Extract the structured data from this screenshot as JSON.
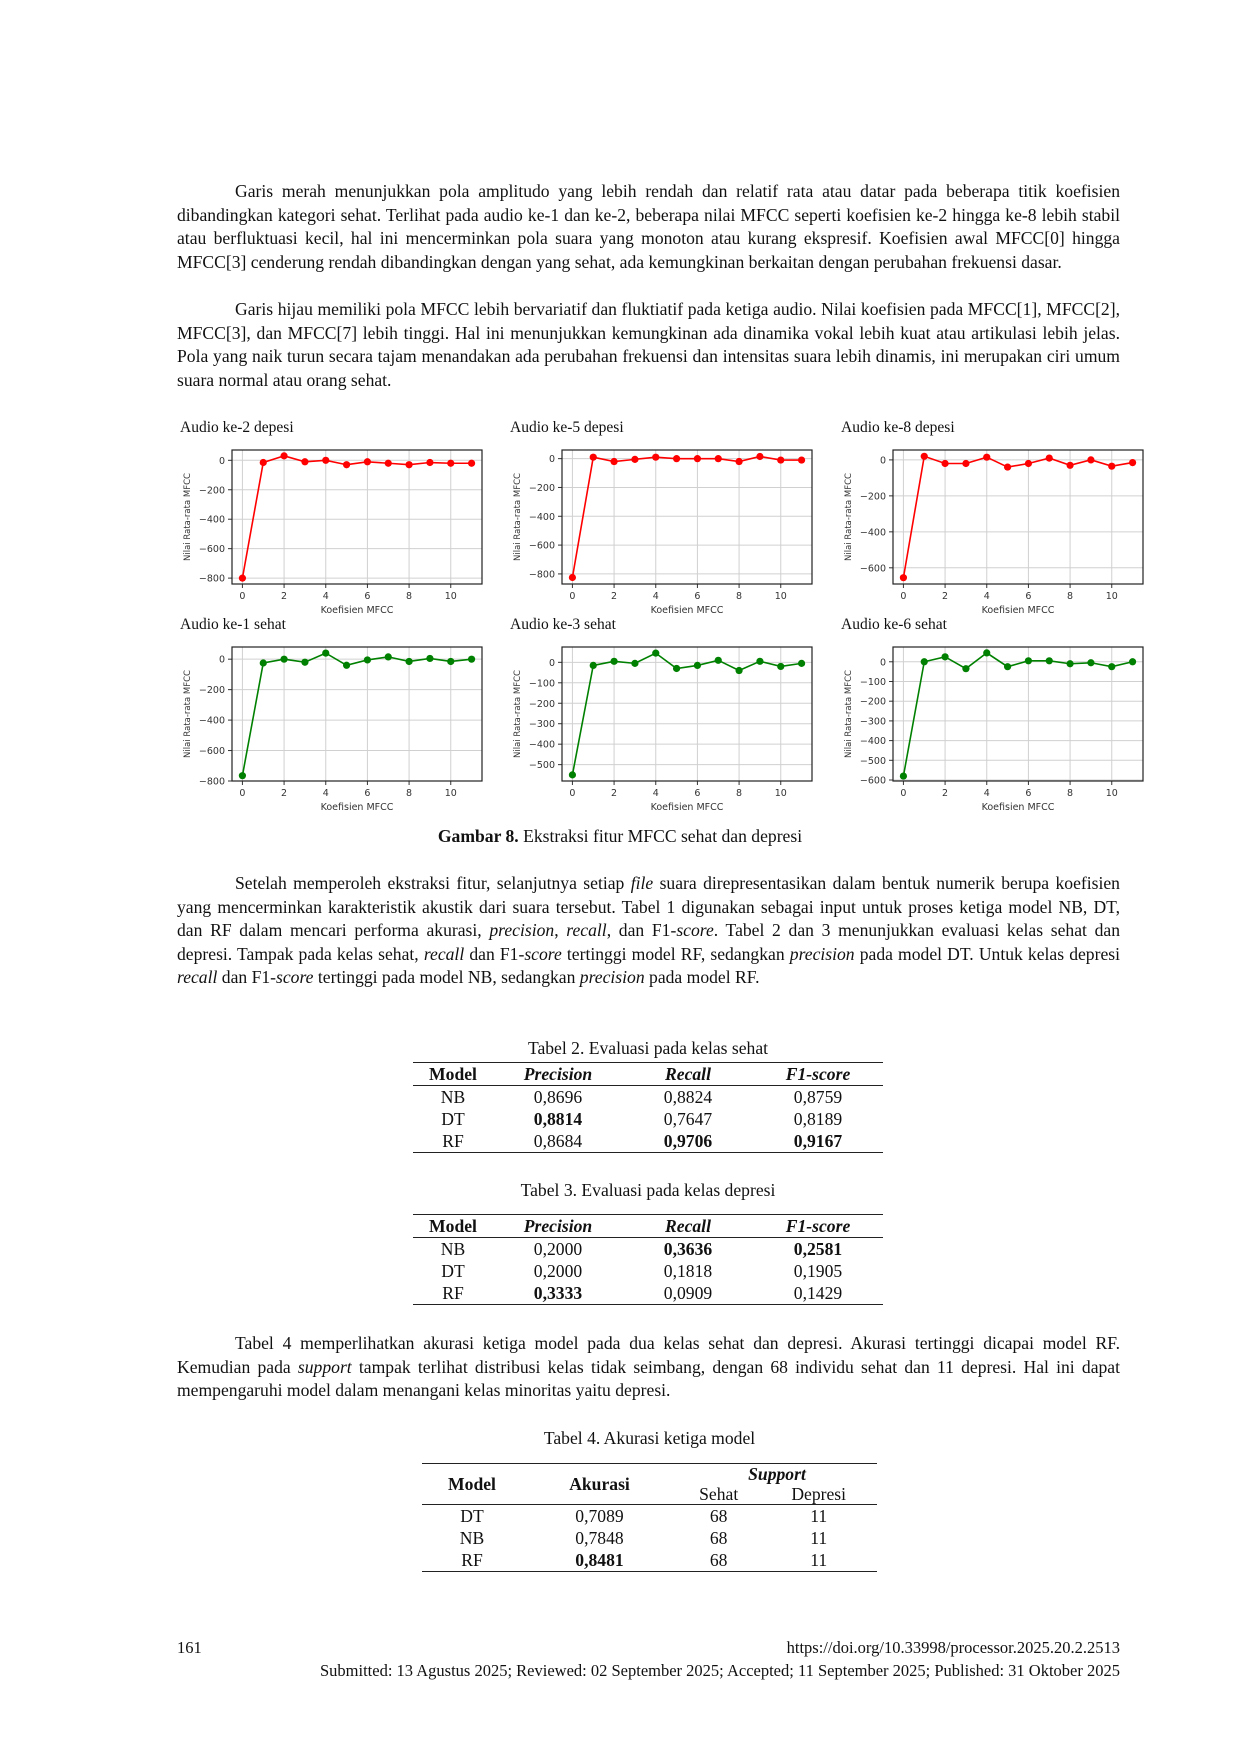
{
  "paragraphs": [
    [
      {
        "t": "Garis merah menunjukkan pola amplitudo yang lebih rendah dan relatif rata atau datar pada beberapa titik koefisien dibandingkan kategori sehat. Terlihat pada audio ke-1 dan ke-2, beberapa nilai MFCC seperti koefisien ke-2 hingga ke-8 lebih stabil atau berfluktuasi kecil, hal ini mencerminkan pola suara yang monoton atau kurang ekspresif. Koefisien awal MFCC[0] hingga MFCC[3] cenderung rendah dibandingkan dengan yang sehat, ada kemungkinan berkaitan dengan perubahan frekuensi dasar."
      }
    ],
    [
      {
        "t": "Garis hijau memiliki pola MFCC lebih bervariatif dan fluktiatif pada ketiga audio. Nilai koefisien pada MFCC[1], MFCC[2], MFCC[3], dan MFCC[7] lebih tinggi. Hal ini menunjukkan kemungkinan ada dinamika vokal lebih kuat atau artikulasi lebih jelas. Pola yang naik turun secara tajam menandakan ada perubahan frekuensi dan intensitas suara lebih dinamis, ini merupakan ciri umum suara normal atau orang sehat."
      }
    ],
    [
      {
        "t": "Setelah memperoleh ekstraksi fitur, selanjutnya setiap "
      },
      {
        "t": "file",
        "i": true
      },
      {
        "t": " suara direpresentasikan dalam bentuk numerik berupa koefisien yang mencerminkan karakteristik akustik dari suara tersebut. Tabel 1 digunakan sebagai input untuk proses ketiga model NB, DT, dan RF dalam mencari performa akurasi, "
      },
      {
        "t": "precision",
        "i": true
      },
      {
        "t": ", "
      },
      {
        "t": "recall",
        "i": true
      },
      {
        "t": ", dan F1-"
      },
      {
        "t": "score",
        "i": true
      },
      {
        "t": ". Tabel 2 dan 3 menunjukkan evaluasi kelas sehat dan depresi. Tampak pada kelas sehat, "
      },
      {
        "t": "recall",
        "i": true
      },
      {
        "t": " dan F1-"
      },
      {
        "t": "score",
        "i": true
      },
      {
        "t": " tertinggi model RF, sedangkan "
      },
      {
        "t": "precision",
        "i": true
      },
      {
        "t": " pada model DT. Untuk kelas depresi "
      },
      {
        "t": "recall",
        "i": true
      },
      {
        "t": " dan F1-"
      },
      {
        "t": "score",
        "i": true
      },
      {
        "t": " tertinggi pada model NB, sedangkan "
      },
      {
        "t": "precision",
        "i": true
      },
      {
        "t": " pada model RF."
      }
    ],
    [
      {
        "t": "Tabel 4 memperlihatkan akurasi ketiga model pada dua kelas sehat dan depresi. Akurasi tertinggi dicapai model RF. Kemudian pada "
      },
      {
        "t": "support",
        "i": true
      },
      {
        "t": " tampak terlihat distribusi kelas tidak seimbang, dengan 68 individu sehat dan 11 depresi. Hal ini dapat mempengaruhi model dalam menangani kelas minoritas yaitu depresi."
      }
    ]
  ],
  "figure_caption": {
    "label": "Gambar 8.",
    "text": " Ekstraksi fitur MFCC sehat dan depresi"
  },
  "chart_data": [
    {
      "type": "line",
      "title": "Audio ke-2 depesi",
      "xlabel": "Koefisien MFCC",
      "ylabel": "Nilai Rata-rata MFCC",
      "color": "#ff0000",
      "x": [
        0,
        1,
        2,
        3,
        4,
        5,
        6,
        7,
        8,
        9,
        10,
        11
      ],
      "values": [
        -800,
        -15,
        30,
        -10,
        0,
        -30,
        -10,
        -20,
        -30,
        -15,
        -20,
        -20
      ],
      "ylim": [
        -840,
        70
      ],
      "yticks": [
        -800,
        -600,
        -400,
        -200,
        0
      ],
      "xticks": [
        0,
        2,
        4,
        6,
        8,
        10
      ],
      "grid": true
    },
    {
      "type": "line",
      "title": "Audio ke-5 depesi",
      "xlabel": "Koefisien MFCC",
      "ylabel": "Nilai Rata-rata MFCC",
      "color": "#ff0000",
      "x": [
        0,
        1,
        2,
        3,
        4,
        5,
        6,
        7,
        8,
        9,
        10,
        11
      ],
      "values": [
        -825,
        10,
        -20,
        -5,
        10,
        0,
        0,
        0,
        -20,
        15,
        -10,
        -10
      ],
      "ylim": [
        -870,
        60
      ],
      "yticks": [
        -800,
        -600,
        -400,
        -200,
        0
      ],
      "xticks": [
        0,
        2,
        4,
        6,
        8,
        10
      ],
      "grid": true
    },
    {
      "type": "line",
      "title": "Audio ke-8 depesi",
      "xlabel": "Koefisien MFCC",
      "ylabel": "Nilai Rata-rata MFCC",
      "color": "#ff0000",
      "x": [
        0,
        1,
        2,
        3,
        4,
        5,
        6,
        7,
        8,
        9,
        10,
        11
      ],
      "values": [
        -655,
        20,
        -20,
        -20,
        15,
        -40,
        -20,
        10,
        -30,
        0,
        -35,
        -15
      ],
      "ylim": [
        -690,
        55
      ],
      "yticks": [
        -600,
        -400,
        -200,
        0
      ],
      "xticks": [
        0,
        2,
        4,
        6,
        8,
        10
      ],
      "grid": true
    },
    {
      "type": "line",
      "title": "Audio ke-1 sehat",
      "xlabel": "Koefisien MFCC",
      "ylabel": "Nilai Rata-rata MFCC",
      "color": "#008000",
      "x": [
        0,
        1,
        2,
        3,
        4,
        5,
        6,
        7,
        8,
        9,
        10,
        11
      ],
      "values": [
        -765,
        -25,
        0,
        -20,
        40,
        -40,
        -5,
        15,
        -15,
        5,
        -15,
        0
      ],
      "ylim": [
        -800,
        80
      ],
      "yticks": [
        -800,
        -600,
        -400,
        -200,
        0
      ],
      "xticks": [
        0,
        2,
        4,
        6,
        8,
        10
      ],
      "grid": true
    },
    {
      "type": "line",
      "title": "Audio ke-3 sehat",
      "xlabel": "Koefisien MFCC",
      "ylabel": "Nilai Rata-rata MFCC",
      "color": "#008000",
      "x": [
        0,
        1,
        2,
        3,
        4,
        5,
        6,
        7,
        8,
        9,
        10,
        11
      ],
      "values": [
        -550,
        -15,
        5,
        -5,
        45,
        -30,
        -15,
        10,
        -40,
        5,
        -20,
        -5
      ],
      "ylim": [
        -580,
        75
      ],
      "yticks": [
        -500,
        -400,
        -300,
        -200,
        -100,
        0
      ],
      "xticks": [
        0,
        2,
        4,
        6,
        8,
        10
      ],
      "grid": true
    },
    {
      "type": "line",
      "title": "Audio ke-6 sehat",
      "xlabel": "Koefisien MFCC",
      "ylabel": "Nilai Rata-rata MFCC",
      "color": "#008000",
      "x": [
        0,
        1,
        2,
        3,
        4,
        5,
        6,
        7,
        8,
        9,
        10,
        11
      ],
      "values": [
        -580,
        0,
        25,
        -35,
        45,
        -25,
        5,
        5,
        -10,
        -5,
        -25,
        0
      ],
      "ylim": [
        -605,
        75
      ],
      "yticks": [
        -600,
        -500,
        -400,
        -300,
        -200,
        -100,
        0
      ],
      "xticks": [
        0,
        2,
        4,
        6,
        8,
        10
      ],
      "grid": true
    }
  ],
  "table2": {
    "caption": "Tabel 2. Evaluasi pada kelas sehat",
    "headers": [
      "Model",
      "Precision",
      "Recall",
      "F1-score"
    ],
    "rows": [
      [
        "NB",
        "0,8696",
        "0,8824",
        "0,8759"
      ],
      [
        "DT",
        "0,8814",
        "0,7647",
        "0,8189"
      ],
      [
        "RF",
        "0,8684",
        "0,9706",
        "0,9167"
      ]
    ],
    "bold": [
      [
        1,
        1
      ],
      [
        2,
        2
      ],
      [
        2,
        3
      ]
    ]
  },
  "table3": {
    "caption": "Tabel 3. Evaluasi pada kelas depresi",
    "headers": [
      "Model",
      "Precision",
      "Recall",
      "F1-score"
    ],
    "rows": [
      [
        "NB",
        "0,2000",
        "0,3636",
        "0,2581"
      ],
      [
        "DT",
        "0,2000",
        "0,1818",
        "0,1905"
      ],
      [
        "RF",
        "0,3333",
        "0,0909",
        "0,1429"
      ]
    ],
    "bold": [
      [
        0,
        2
      ],
      [
        0,
        3
      ],
      [
        2,
        1
      ]
    ]
  },
  "table4": {
    "caption": "Tabel 4. Akurasi ketiga model",
    "headers": [
      "Model",
      "Akurasi",
      "Support",
      "Sehat",
      "Depresi"
    ],
    "rows": [
      [
        "DT",
        "0,7089",
        "68",
        "11"
      ],
      [
        "NB",
        "0,7848",
        "68",
        "11"
      ],
      [
        "RF",
        "0,8481",
        "68",
        "11"
      ]
    ]
  },
  "footer": {
    "page_number": "161",
    "doi": "https://doi.org/10.33998/processor.2025.20.2.2513",
    "dates": "Submitted: 13 Agustus 2025; Reviewed: 02 September 2025; Accepted; 11 September 2025; Published: 31 Oktober 2025"
  }
}
